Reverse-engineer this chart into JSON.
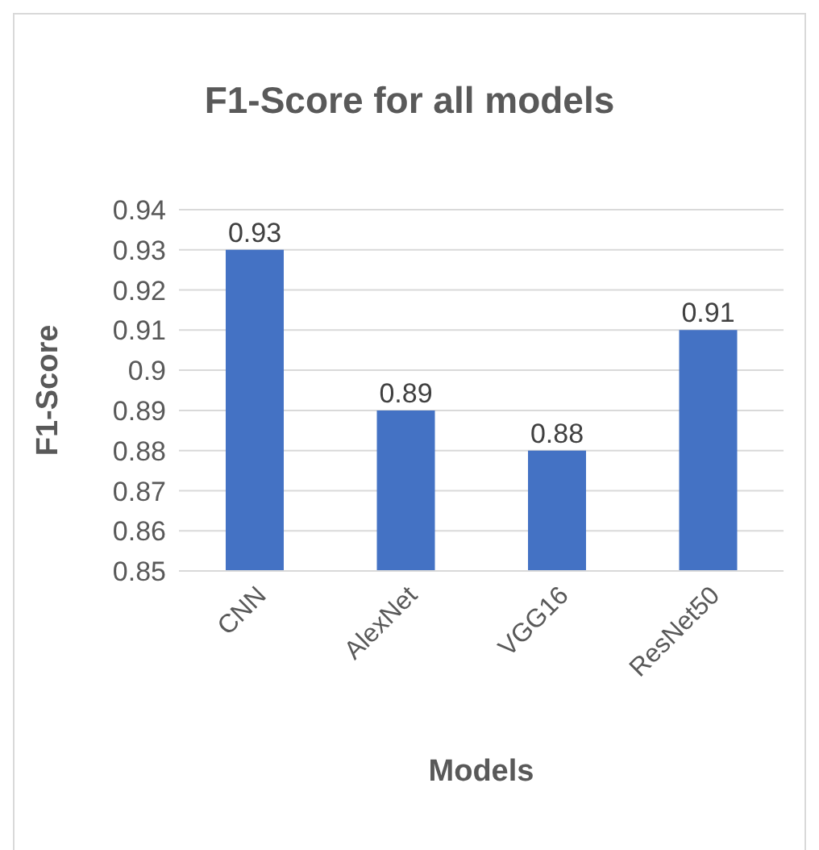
{
  "chart_data": {
    "type": "bar",
    "title": "F1-Score for all models",
    "xlabel": "Models",
    "ylabel": "F1-Score",
    "categories": [
      "CNN",
      "AlexNet",
      "VGG16",
      "ResNet50"
    ],
    "values": [
      0.93,
      0.89,
      0.88,
      0.91
    ],
    "color": "#4472c4",
    "ylim": [
      0.85,
      0.94
    ],
    "yticks": [
      0.85,
      0.86,
      0.87,
      0.88,
      0.89,
      0.9,
      0.91,
      0.92,
      0.93,
      0.94
    ],
    "grid": "y",
    "data_labels": true
  }
}
